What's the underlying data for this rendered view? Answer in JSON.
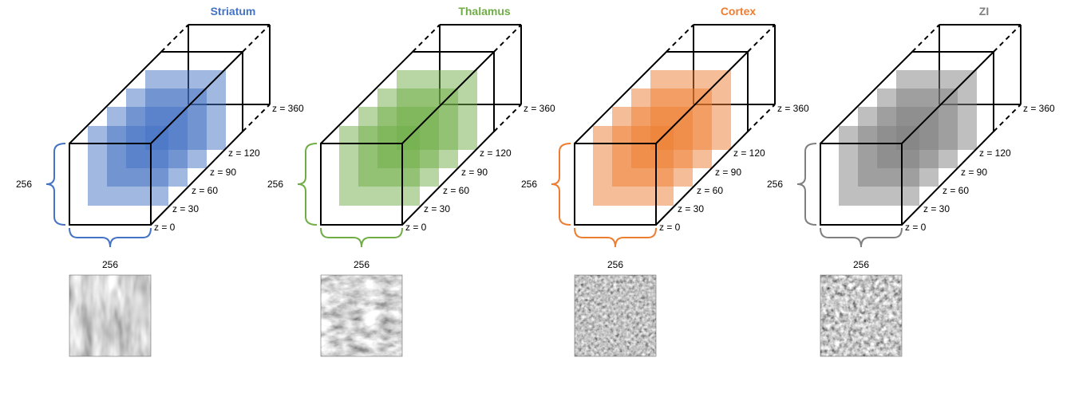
{
  "panels": [
    {
      "title": "Striatum",
      "color": "#4472C4",
      "texture": "striatum",
      "z_labels": [
        "z = 0",
        "z = 30",
        "z = 60",
        "z = 90",
        "z = 120",
        "z = 360"
      ],
      "height_label": "256",
      "width_label": "256"
    },
    {
      "title": "Thalamus",
      "color": "#70AD47",
      "texture": "thalamus",
      "z_labels": [
        "z = 0",
        "z = 30",
        "z = 60",
        "z = 90",
        "z = 120",
        "z = 360"
      ],
      "height_label": "256",
      "width_label": "256"
    },
    {
      "title": "Cortex",
      "color": "#ED7D31",
      "texture": "cortex",
      "z_labels": [
        "z = 0",
        "z = 30",
        "z = 60",
        "z = 90",
        "z = 120",
        "z = 360"
      ],
      "height_label": "256",
      "width_label": "256"
    },
    {
      "title": "ZI",
      "color": "#7F7F7F",
      "texture": "zi",
      "z_labels": [
        "z = 0",
        "z = 30",
        "z = 60",
        "z = 90",
        "z = 120",
        "z = 360"
      ],
      "height_label": "256",
      "width_label": "256"
    }
  ]
}
